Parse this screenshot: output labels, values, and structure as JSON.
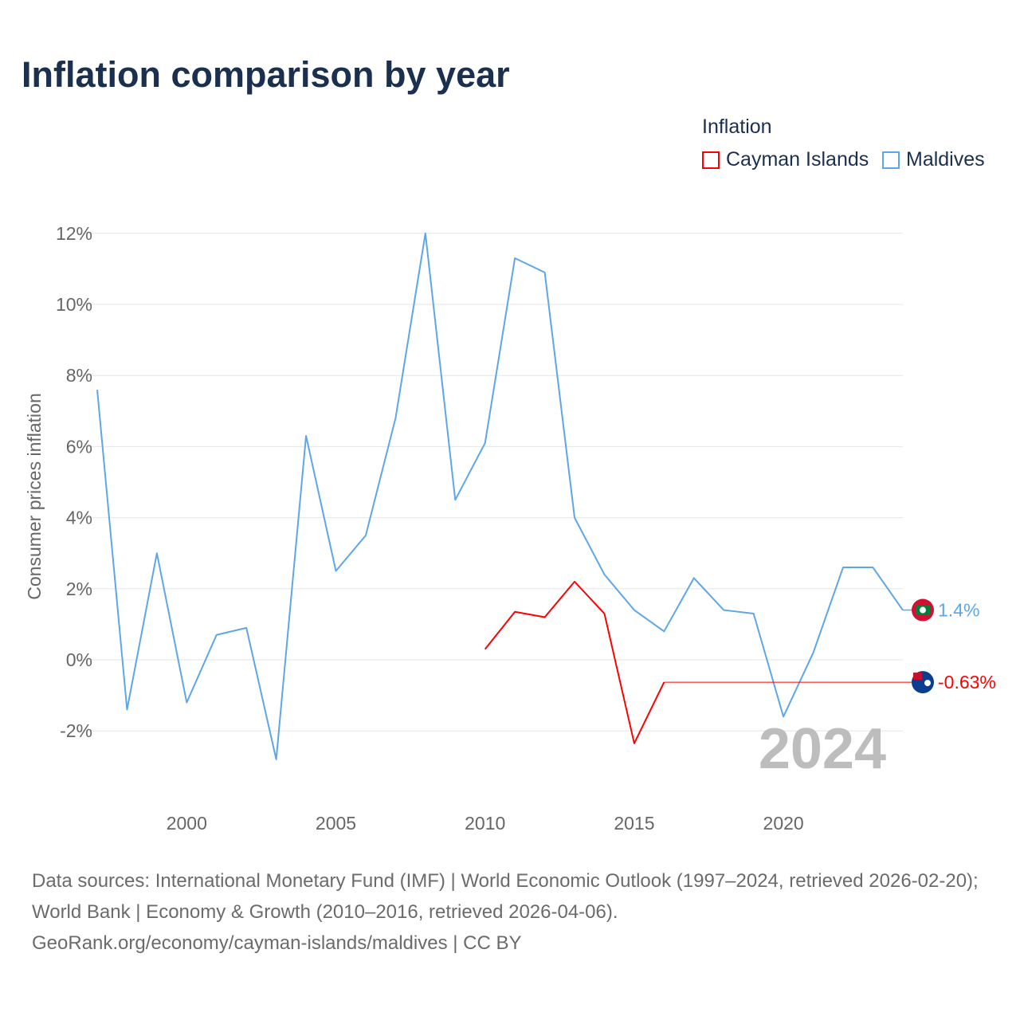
{
  "title": "Inflation comparison by year",
  "legend": {
    "title": "Inflation",
    "items": [
      "Cayman Islands",
      "Maldives"
    ]
  },
  "colors": {
    "Cayman Islands": "#ff0000",
    "Maldives": "#5ea6e8"
  },
  "year_watermark": "2024",
  "footer": {
    "line1": "Data sources: International Monetary Fund (IMF) | World Economic Outlook (1997–2024, retrieved 2026-02-20); World Bank | Economy & Growth (2010–2016, retrieved 2026-04-06).",
    "line2": "GeoRank.org/economy/cayman-islands/maldives | CC BY"
  },
  "chart_data": {
    "type": "line",
    "title": "Inflation comparison by year",
    "xlabel": "",
    "ylabel": "Consumer prices inflation",
    "xlim": [
      1997,
      2024
    ],
    "ylim": [
      -3.5,
      12.5
    ],
    "xticks": [
      2000,
      2005,
      2010,
      2015,
      2020
    ],
    "yticks": [
      -2,
      0,
      2,
      4,
      6,
      8,
      10,
      12
    ],
    "ytick_labels": [
      "-2%",
      "0%",
      "2%",
      "4%",
      "6%",
      "8%",
      "10%",
      "12%"
    ],
    "grid": true,
    "legend_position": "top-right",
    "series": [
      {
        "name": "Maldives",
        "end_label": "1.4%",
        "x": [
          1997,
          1998,
          1999,
          2000,
          2001,
          2002,
          2003,
          2004,
          2005,
          2006,
          2007,
          2008,
          2009,
          2010,
          2011,
          2012,
          2013,
          2014,
          2015,
          2016,
          2017,
          2018,
          2019,
          2020,
          2021,
          2022,
          2023,
          2024
        ],
        "values": [
          7.6,
          -1.4,
          3.0,
          -1.2,
          0.7,
          0.9,
          -2.8,
          6.3,
          2.5,
          3.5,
          6.8,
          12.0,
          4.5,
          6.1,
          11.3,
          10.9,
          4.0,
          2.4,
          1.4,
          0.8,
          2.3,
          1.4,
          1.3,
          -1.6,
          0.2,
          2.6,
          2.6,
          1.4
        ]
      },
      {
        "name": "Cayman Islands",
        "end_label": "-0.63%",
        "x": [
          2010,
          2011,
          2012,
          2013,
          2014,
          2015,
          2016
        ],
        "values": [
          0.3,
          1.35,
          1.2,
          2.2,
          1.3,
          -2.35,
          -0.63
        ],
        "carried_forward_to": 2024
      }
    ]
  }
}
